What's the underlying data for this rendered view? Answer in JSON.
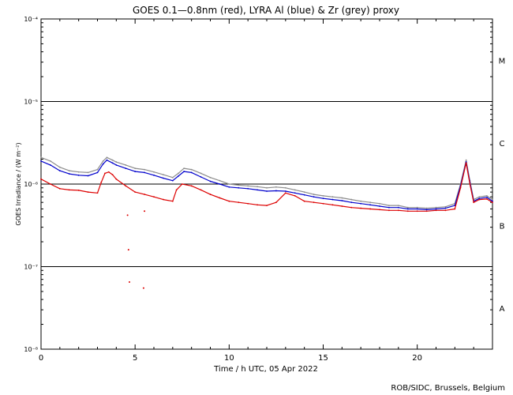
{
  "chart_data": {
    "type": "line",
    "title": "GOES 0.1—0.8nm (red), LYRA Al (blue) & Zr (grey) proxy",
    "xlabel": "Time / h UTC, 05 Apr 2022",
    "ylabel": "GOES Irradiance / (W m⁻²)",
    "xlim": [
      0,
      24
    ],
    "ylim": [
      1e-08,
      0.0001
    ],
    "yscale": "log",
    "x_ticks": [
      0,
      5,
      10,
      15,
      20
    ],
    "y_ticks": [
      {
        "value": 1e-08,
        "label": "10⁻⁸"
      },
      {
        "value": 1e-07,
        "label": "10⁻⁷"
      },
      {
        "value": 1e-06,
        "label": "10⁻⁶"
      },
      {
        "value": 1e-05,
        "label": "10⁻⁵"
      },
      {
        "value": 0.0001,
        "label": "10⁻⁴"
      }
    ],
    "flare_classes": [
      {
        "label": "A",
        "value": 3.16e-08
      },
      {
        "label": "B",
        "value": 3.16e-07
      },
      {
        "label": "C",
        "value": 3.16e-06
      },
      {
        "label": "M",
        "value": 3.16e-05
      }
    ],
    "threshold_lines": [
      1e-07,
      1e-06,
      1e-05
    ],
    "series": [
      {
        "name": "LYRA Zr proxy",
        "color": "#8c8c8c",
        "x": [
          0,
          0.5,
          1,
          1.5,
          2,
          2.5,
          3,
          3.3,
          3.5,
          3.8,
          4,
          4.5,
          5,
          5.5,
          6,
          6.5,
          7,
          7.3,
          7.6,
          8,
          8.5,
          9,
          9.5,
          10,
          10.5,
          11,
          11.5,
          12,
          12.5,
          13,
          13.5,
          14,
          14.5,
          15,
          15.5,
          16,
          16.5,
          17,
          17.5,
          18,
          18.5,
          19,
          19.5,
          20,
          20.5,
          21,
          21.5,
          22,
          22.3,
          22.6,
          22.8,
          23,
          23.3,
          23.7,
          24
        ],
        "values": [
          2.1e-06,
          1.9e-06,
          1.6e-06,
          1.45e-06,
          1.4e-06,
          1.38e-06,
          1.5e-06,
          1.9e-06,
          2.1e-06,
          1.95e-06,
          1.85e-06,
          1.7e-06,
          1.55e-06,
          1.5e-06,
          1.4e-06,
          1.3e-06,
          1.2e-06,
          1.35e-06,
          1.55e-06,
          1.5e-06,
          1.35e-06,
          1.2e-06,
          1.1e-06,
          1e-06,
          9.7e-07,
          9.5e-07,
          9.3e-07,
          9e-07,
          9.2e-07,
          9e-07,
          8.5e-07,
          8e-07,
          7.5e-07,
          7.2e-07,
          7e-07,
          6.8e-07,
          6.5e-07,
          6.2e-07,
          6e-07,
          5.8e-07,
          5.5e-07,
          5.5e-07,
          5.2e-07,
          5.2e-07,
          5.1e-07,
          5.2e-07,
          5.3e-07,
          5.8e-07,
          1e-06,
          1.95e-06,
          1.1e-06,
          6.5e-07,
          7e-07,
          7.2e-07,
          6.5e-07
        ]
      },
      {
        "name": "LYRA Al proxy",
        "color": "#0000cc",
        "x": [
          0,
          0.5,
          1,
          1.5,
          2,
          2.5,
          3,
          3.3,
          3.5,
          3.8,
          4,
          4.5,
          5,
          5.5,
          6,
          6.5,
          7,
          7.3,
          7.6,
          8,
          8.5,
          9,
          9.5,
          10,
          10.5,
          11,
          11.5,
          12,
          12.5,
          13,
          13.5,
          14,
          14.5,
          15,
          15.5,
          16,
          16.5,
          17,
          17.5,
          18,
          18.5,
          19,
          19.5,
          20,
          20.5,
          21,
          21.5,
          22,
          22.3,
          22.6,
          22.8,
          23,
          23.3,
          23.7,
          24
        ],
        "values": [
          1.9e-06,
          1.7e-06,
          1.45e-06,
          1.33e-06,
          1.28e-06,
          1.26e-06,
          1.38e-06,
          1.75e-06,
          1.95e-06,
          1.8e-06,
          1.7e-06,
          1.55e-06,
          1.42e-06,
          1.38e-06,
          1.28e-06,
          1.18e-06,
          1.1e-06,
          1.25e-06,
          1.42e-06,
          1.38e-06,
          1.22e-06,
          1.08e-06,
          1e-06,
          9.2e-07,
          9e-07,
          8.8e-07,
          8.5e-07,
          8.2e-07,
          8.3e-07,
          8.2e-07,
          7.8e-07,
          7.4e-07,
          7e-07,
          6.7e-07,
          6.5e-07,
          6.3e-07,
          6e-07,
          5.8e-07,
          5.6e-07,
          5.4e-07,
          5.2e-07,
          5.2e-07,
          5e-07,
          5e-07,
          4.9e-07,
          5e-07,
          5.1e-07,
          5.5e-07,
          9.5e-07,
          1.85e-06,
          1.05e-06,
          6.2e-07,
          6.7e-07,
          6.9e-07,
          6.2e-07
        ]
      },
      {
        "name": "GOES 0.1-0.8nm",
        "color": "#dd0000",
        "x": [
          0,
          0.5,
          1,
          1.5,
          2,
          2.5,
          3,
          3.2,
          3.4,
          3.6,
          3.8,
          4,
          4.5,
          5,
          5.5,
          6,
          6.5,
          7,
          7.2,
          7.5,
          8,
          8.5,
          9,
          9.5,
          10,
          10.5,
          11,
          11.5,
          12,
          12.5,
          13,
          13.5,
          14,
          14.5,
          15,
          15.5,
          16,
          16.5,
          17,
          17.5,
          18,
          18.5,
          19,
          19.5,
          20,
          20.5,
          21,
          21.5,
          22,
          22.3,
          22.6,
          22.8,
          23,
          23.3,
          23.7,
          24
        ],
        "values": [
          1.15e-06,
          1e-06,
          8.8e-07,
          8.5e-07,
          8.4e-07,
          8e-07,
          7.8e-07,
          1.05e-06,
          1.35e-06,
          1.4e-06,
          1.3e-06,
          1.15e-06,
          9.5e-07,
          8e-07,
          7.5e-07,
          7e-07,
          6.5e-07,
          6.2e-07,
          8.5e-07,
          1e-06,
          9.5e-07,
          8.5e-07,
          7.5e-07,
          6.8e-07,
          6.2e-07,
          6e-07,
          5.8e-07,
          5.6e-07,
          5.5e-07,
          6e-07,
          7.8e-07,
          7.2e-07,
          6.2e-07,
          6e-07,
          5.8e-07,
          5.6e-07,
          5.4e-07,
          5.2e-07,
          5.1e-07,
          5e-07,
          4.9e-07,
          4.8e-07,
          4.8e-07,
          4.7e-07,
          4.7e-07,
          4.7e-07,
          4.8e-07,
          4.8e-07,
          5e-07,
          9e-07,
          1.8e-06,
          1e-06,
          6e-07,
          6.5e-07,
          6.6e-07,
          6e-07
        ]
      },
      {
        "name": "GOES isolated points",
        "color": "#dd0000",
        "type": "scatter",
        "x": [
          4.6,
          4.65,
          4.7,
          5.5,
          5.45
        ],
        "values": [
          4.2e-07,
          1.6e-07,
          6.5e-08,
          4.7e-07,
          5.5e-08
        ]
      }
    ]
  },
  "footer": {
    "credit": "ROB/SIDC, Brussels, Belgium"
  }
}
